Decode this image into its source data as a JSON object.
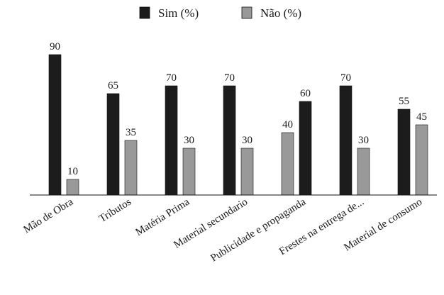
{
  "chart_data": {
    "type": "bar",
    "categories": [
      "Mão de Obra",
      "Tributos",
      "Matéria Prima",
      "Material secundario",
      "Publicidade e propaganda",
      "Frestes na entrega de...",
      "Material de consumo"
    ],
    "series": [
      {
        "name": "Sim (%)",
        "color": "#1c1c1c",
        "values": [
          90,
          65,
          70,
          70,
          60,
          70,
          55
        ]
      },
      {
        "name": "Não (%)",
        "color": "#999999",
        "values": [
          10,
          35,
          30,
          30,
          40,
          30,
          45
        ]
      }
    ],
    "series_order_per_category": [
      [
        "Sim (%)",
        "Não (%)"
      ],
      [
        "Sim (%)",
        "Não (%)"
      ],
      [
        "Sim (%)",
        "Não (%)"
      ],
      [
        "Sim (%)",
        "Não (%)"
      ],
      [
        "Não (%)",
        "Sim (%)"
      ],
      [
        "Sim (%)",
        "Não (%)"
      ],
      [
        "Sim (%)",
        "Não (%)"
      ]
    ],
    "ylim": [
      0,
      100
    ],
    "grid": false,
    "legend": "top-center",
    "title": "",
    "xlabel": "",
    "ylabel": ""
  }
}
